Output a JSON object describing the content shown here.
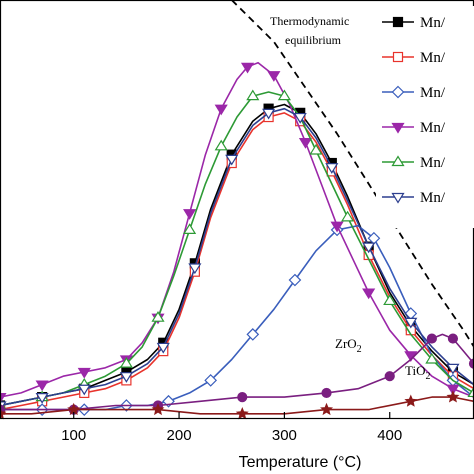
{
  "chart_data": {
    "type": "line",
    "title": "",
    "xlabel": "Temperature (°C)",
    "ylabel": "",
    "xlim": [
      30,
      480
    ],
    "ylim": [
      0,
      100
    ],
    "x_ticks": [
      100,
      200,
      300,
      400
    ],
    "grid": false,
    "legend_position": "top-right",
    "legend_entries": [
      {
        "label": "Mn/",
        "color": "#000000",
        "marker": "square-filled"
      },
      {
        "label": "Mn/",
        "color": "#e8332c",
        "marker": "square-open"
      },
      {
        "label": "Mn/",
        "color": "#3a5ebc",
        "marker": "diamond-open"
      },
      {
        "label": "Mn/",
        "color": "#9b27a8",
        "marker": "triangle-down-filled"
      },
      {
        "label": "Mn/",
        "color": "#2d9a35",
        "marker": "triangle-up-open"
      },
      {
        "label": "Mn/",
        "color": "#2d3f8f",
        "marker": "triangle-down-open"
      }
    ],
    "annotations": {
      "equilibrium_line1": "Thermodynamic",
      "equilibrium_line2": "equilibrium",
      "zro2_base": "ZrO",
      "zro2_sub": "2",
      "tio2_base": "TiO",
      "tio2_sub": "2"
    },
    "series": [
      {
        "color": "#000000",
        "marker": "square-filled",
        "x": [
          30,
          50,
          70,
          90,
          110,
          130,
          150,
          170,
          185,
          200,
          215,
          230,
          250,
          270,
          285,
          300,
          315,
          330,
          345,
          360,
          380,
          400,
          420,
          440,
          460,
          480
        ],
        "y": [
          3,
          4,
          5,
          6,
          7,
          9,
          11,
          14,
          18,
          26,
          37,
          50,
          63,
          71,
          74,
          75,
          73,
          68,
          61,
          53,
          41,
          30,
          22,
          16,
          11,
          8
        ]
      },
      {
        "color": "#e8332c",
        "marker": "square-open",
        "x": [
          30,
          50,
          70,
          90,
          110,
          130,
          150,
          170,
          185,
          200,
          215,
          230,
          250,
          270,
          285,
          300,
          315,
          330,
          345,
          360,
          380,
          400,
          420,
          440,
          460,
          480
        ],
        "y": [
          2,
          3,
          4,
          5,
          6,
          7,
          9,
          12,
          16,
          24,
          35,
          48,
          61,
          69,
          72,
          73,
          71,
          66,
          59,
          51,
          39,
          29,
          21,
          15,
          10,
          7
        ]
      },
      {
        "color": "#3a5ebc",
        "marker": "diamond-open",
        "x": [
          30,
          50,
          70,
          90,
          110,
          130,
          150,
          170,
          190,
          210,
          230,
          250,
          270,
          290,
          310,
          330,
          350,
          370,
          385,
          400,
          420,
          440,
          460,
          480
        ],
        "y": [
          2,
          2,
          2,
          2,
          2,
          2,
          3,
          3,
          4,
          6,
          9,
          14,
          20,
          26,
          33,
          40,
          45,
          46,
          43,
          36,
          25,
          15,
          9,
          5
        ]
      },
      {
        "color": "#9b27a8",
        "marker": "triangle-down-filled",
        "x": [
          30,
          50,
          70,
          90,
          110,
          130,
          150,
          165,
          180,
          195,
          210,
          225,
          240,
          255,
          265,
          275,
          290,
          305,
          320,
          335,
          350,
          365,
          380,
          400,
          420,
          440,
          460,
          480
        ],
        "y": [
          5,
          6,
          8,
          10,
          11,
          12,
          14,
          18,
          24,
          35,
          49,
          63,
          74,
          81,
          84,
          85,
          82,
          75,
          66,
          56,
          46,
          38,
          30,
          21,
          15,
          10,
          7,
          5
        ]
      },
      {
        "color": "#2d9a35",
        "marker": "triangle-up-open",
        "x": [
          30,
          50,
          70,
          90,
          110,
          130,
          150,
          165,
          180,
          195,
          210,
          225,
          240,
          255,
          270,
          285,
          300,
          315,
          330,
          345,
          360,
          380,
          400,
          420,
          440,
          460,
          480
        ],
        "y": [
          3,
          4,
          5,
          6,
          8,
          10,
          13,
          17,
          24,
          34,
          45,
          56,
          65,
          72,
          77,
          78,
          77,
          72,
          64,
          56,
          48,
          38,
          28,
          20,
          14,
          9,
          6
        ]
      },
      {
        "color": "#2d3f8f",
        "marker": "triangle-down-open",
        "x": [
          30,
          50,
          70,
          90,
          110,
          130,
          150,
          170,
          185,
          200,
          215,
          230,
          250,
          270,
          285,
          300,
          315,
          330,
          345,
          360,
          380,
          400,
          420,
          440,
          460,
          480
        ],
        "y": [
          3,
          4,
          5,
          6,
          7,
          8,
          10,
          13,
          17,
          25,
          36,
          49,
          62,
          70,
          73,
          74,
          72,
          67,
          60,
          52,
          41,
          31,
          23,
          17,
          12,
          8
        ]
      },
      {
        "color": "#7a1f80",
        "marker": "circle-filled",
        "label_ref": "zro2",
        "x": [
          30,
          60,
          100,
          140,
          180,
          220,
          260,
          300,
          340,
          370,
          400,
          420,
          440,
          450,
          460,
          470,
          480
        ],
        "y": [
          2,
          2,
          2,
          3,
          3,
          4,
          5,
          5,
          6,
          7,
          10,
          14,
          19,
          20,
          19,
          16,
          13
        ]
      },
      {
        "color": "#8b1a1a",
        "marker": "star-filled",
        "label_ref": "tio2",
        "x": [
          30,
          60,
          100,
          140,
          180,
          220,
          260,
          300,
          340,
          380,
          420,
          440,
          460,
          480
        ],
        "y": [
          1,
          1,
          2,
          2,
          2,
          1,
          1,
          1,
          2,
          2,
          4,
          5,
          5,
          4
        ]
      },
      {
        "color": "#000000",
        "dashed": true,
        "label_ref": "equilibrium",
        "x": [
          250,
          290,
          320,
          350,
          380,
          410,
          440,
          470,
          480
        ],
        "y": [
          100,
          90,
          79,
          68,
          56,
          44,
          32,
          21,
          17
        ]
      }
    ]
  }
}
